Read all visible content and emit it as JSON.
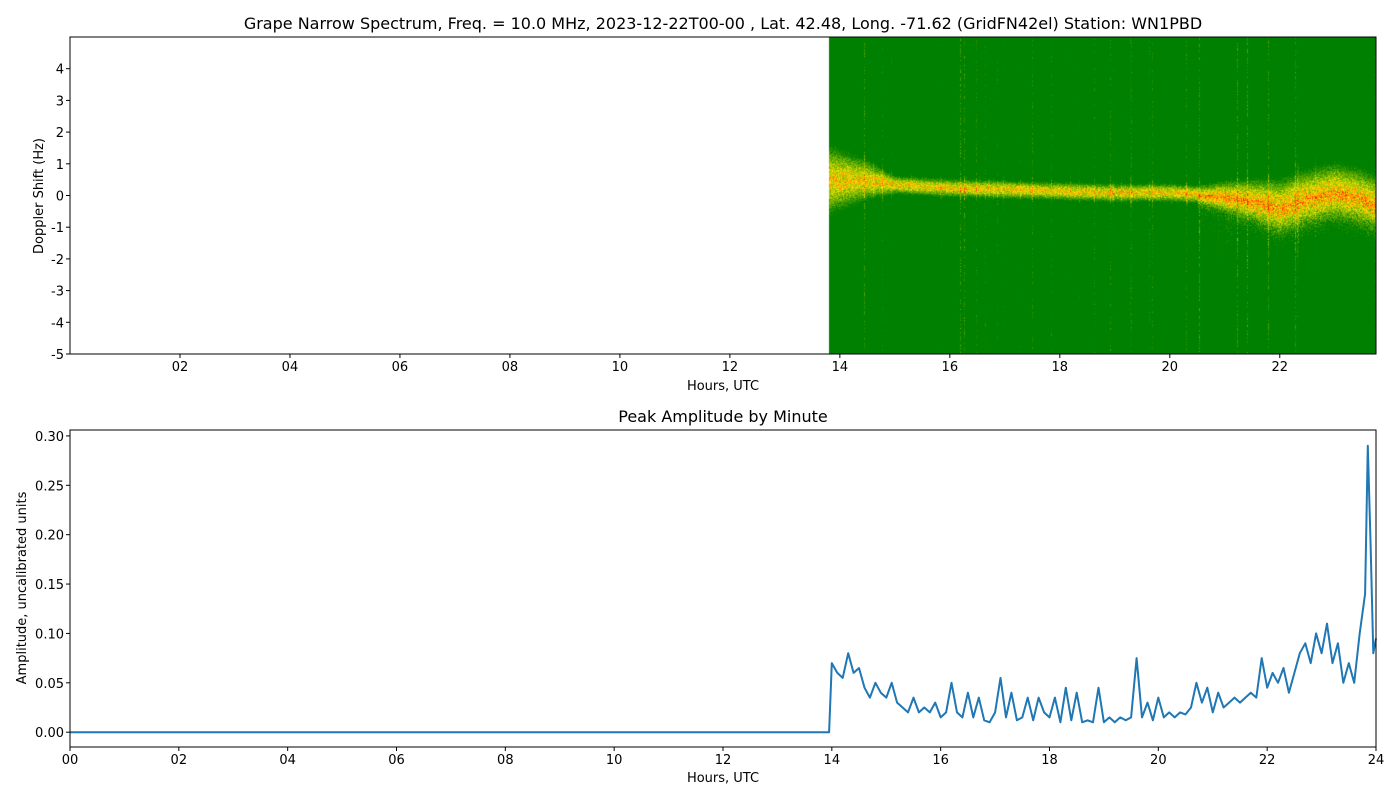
{
  "chart_data": [
    {
      "type": "heatmap",
      "title": "Grape Narrow Spectrum, Freq. = 10.0 MHz, 2023-12-22T00-00 , Lat.  42.48, Long. -71.62 (GridFN42el) Station: WN1PBD",
      "xlabel": "Hours, UTC",
      "ylabel": "Doppler Shift (Hz)",
      "xlim": [
        0,
        23.75
      ],
      "ylim": [
        -5,
        5
      ],
      "xticks": [
        2,
        4,
        6,
        8,
        10,
        12,
        14,
        16,
        18,
        20,
        22
      ],
      "xtick_labels": [
        "02",
        "04",
        "06",
        "08",
        "10",
        "12",
        "14",
        "16",
        "18",
        "20",
        "22"
      ],
      "yticks": [
        4,
        3,
        2,
        1,
        0,
        -1,
        -2,
        -3,
        -4,
        -5
      ],
      "ytick_labels": [
        "4",
        "3",
        "2",
        "1",
        "0",
        "-1",
        "-2",
        "-3",
        "-4",
        "-5"
      ],
      "data_start_hour": 13.8,
      "doppler_trace_hours": [
        13.8,
        14.5,
        15.0,
        16.0,
        17.0,
        18.0,
        19.0,
        20.0,
        20.5,
        21.0,
        21.5,
        22.0,
        22.5,
        23.0,
        23.5,
        23.75
      ],
      "doppler_trace_hz": [
        0.5,
        0.5,
        0.35,
        0.25,
        0.2,
        0.15,
        0.1,
        0.1,
        0.05,
        0.0,
        -0.1,
        -0.3,
        0.0,
        0.2,
        0.0,
        -0.2
      ],
      "colors": {
        "background": "#008000",
        "mid": "#e6e600",
        "peak": "#ff2000"
      }
    },
    {
      "type": "line",
      "title": "Peak Amplitude by Minute",
      "xlabel": "Hours, UTC",
      "ylabel": "Amplitude, uncalibrated units",
      "xlim": [
        0,
        24
      ],
      "ylim": [
        -0.015,
        0.306
      ],
      "xticks": [
        0,
        2,
        4,
        6,
        8,
        10,
        12,
        14,
        16,
        18,
        20,
        22,
        24
      ],
      "xtick_labels": [
        "00",
        "02",
        "04",
        "06",
        "08",
        "10",
        "12",
        "14",
        "16",
        "18",
        "20",
        "22",
        "24"
      ],
      "yticks": [
        0,
        0.05,
        0.1,
        0.15,
        0.2,
        0.25,
        0.3
      ],
      "ytick_labels": [
        "0.00",
        "0.05",
        "0.10",
        "0.15",
        "0.20",
        "0.25",
        "0.30"
      ],
      "color": "#1f77b4",
      "x": [
        0,
        13.95,
        14.0,
        14.1,
        14.2,
        14.3,
        14.4,
        14.5,
        14.6,
        14.7,
        14.8,
        14.9,
        15.0,
        15.1,
        15.2,
        15.3,
        15.4,
        15.5,
        15.6,
        15.7,
        15.8,
        15.9,
        16.0,
        16.1,
        16.2,
        16.3,
        16.4,
        16.5,
        16.6,
        16.7,
        16.8,
        16.9,
        17.0,
        17.1,
        17.2,
        17.3,
        17.4,
        17.5,
        17.6,
        17.7,
        17.8,
        17.9,
        18.0,
        18.1,
        18.2,
        18.3,
        18.4,
        18.5,
        18.6,
        18.7,
        18.8,
        18.9,
        19.0,
        19.1,
        19.2,
        19.3,
        19.4,
        19.5,
        19.6,
        19.7,
        19.8,
        19.9,
        20.0,
        20.1,
        20.2,
        20.3,
        20.4,
        20.5,
        20.6,
        20.7,
        20.8,
        20.9,
        21.0,
        21.1,
        21.2,
        21.3,
        21.4,
        21.5,
        21.6,
        21.7,
        21.8,
        21.9,
        22.0,
        22.1,
        22.2,
        22.3,
        22.4,
        22.5,
        22.6,
        22.7,
        22.8,
        22.9,
        23.0,
        23.1,
        23.2,
        23.3,
        23.4,
        23.5,
        23.6,
        23.7,
        23.8,
        23.85,
        23.9,
        23.95,
        24.0
      ],
      "y": [
        0,
        0,
        0.07,
        0.06,
        0.055,
        0.08,
        0.06,
        0.065,
        0.045,
        0.035,
        0.05,
        0.04,
        0.035,
        0.05,
        0.03,
        0.025,
        0.02,
        0.035,
        0.02,
        0.025,
        0.02,
        0.03,
        0.015,
        0.02,
        0.05,
        0.02,
        0.015,
        0.04,
        0.015,
        0.035,
        0.012,
        0.01,
        0.02,
        0.055,
        0.015,
        0.04,
        0.012,
        0.015,
        0.035,
        0.012,
        0.035,
        0.02,
        0.015,
        0.035,
        0.01,
        0.045,
        0.012,
        0.04,
        0.01,
        0.012,
        0.01,
        0.045,
        0.01,
        0.015,
        0.01,
        0.015,
        0.012,
        0.015,
        0.075,
        0.015,
        0.03,
        0.012,
        0.035,
        0.015,
        0.02,
        0.015,
        0.02,
        0.018,
        0.025,
        0.05,
        0.03,
        0.045,
        0.02,
        0.04,
        0.025,
        0.03,
        0.035,
        0.03,
        0.035,
        0.04,
        0.035,
        0.075,
        0.045,
        0.06,
        0.05,
        0.065,
        0.04,
        0.06,
        0.08,
        0.09,
        0.07,
        0.1,
        0.08,
        0.11,
        0.07,
        0.09,
        0.05,
        0.07,
        0.05,
        0.1,
        0.14,
        0.29,
        0.19,
        0.08,
        0.095
      ]
    }
  ]
}
